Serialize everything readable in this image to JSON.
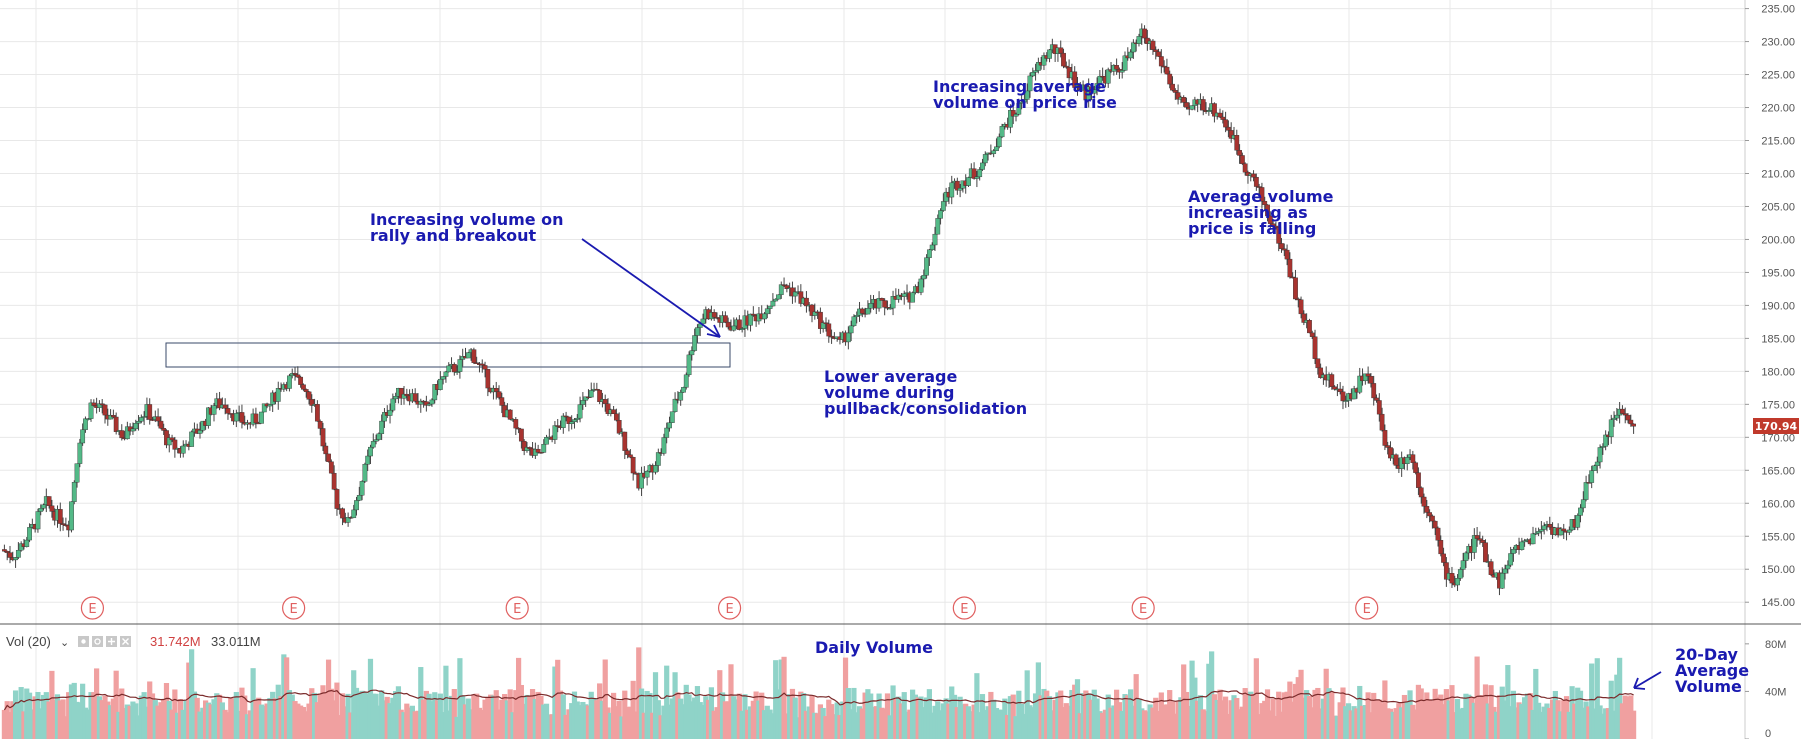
{
  "colors": {
    "up_candle": "#53b987",
    "down_candle": "#a8332f",
    "vol_up": "#8fd3c8",
    "vol_down": "#f0a0a0",
    "avg_line": "#7a2a2a",
    "annotation": "#1a1ab0",
    "earnings_marker": "#e06060",
    "price_badge": "#c0392b",
    "grid": "#e8e8e8"
  },
  "legend": {
    "vol_label": "Vol (20)",
    "vol_value": "31.742M",
    "avg_value": "33.011M",
    "icons": [
      "eye-icon",
      "gear-icon",
      "plus-icon",
      "close-icon"
    ]
  },
  "price_badge": "170.94",
  "earnings_label": "E",
  "annotations": {
    "rally": [
      "Increasing volume on",
      "rally and breakout"
    ],
    "pullback": [
      "Lower average",
      "volume during",
      "pullback/consolidation"
    ],
    "price_rise": [
      "Increasing average",
      "volume on price rise"
    ],
    "falling": [
      "Average volume",
      "increasing as",
      "price is falling"
    ],
    "daily_volume": "Daily Volume",
    "avg20": [
      "20-Day",
      "Average",
      "Volume"
    ]
  },
  "chart_data": [
    {
      "type": "candlestick",
      "title": "",
      "y_ticks": [
        "145.00",
        "150.00",
        "155.00",
        "160.00",
        "165.00",
        "170.00",
        "175.00",
        "180.00",
        "185.00",
        "190.00",
        "195.00",
        "200.00",
        "205.00",
        "210.00",
        "215.00",
        "220.00",
        "225.00",
        "230.00",
        "235.00"
      ],
      "ylim": [
        142,
        236
      ],
      "y_scale": "linear",
      "grid": true,
      "last_price": 170.94,
      "close_series": [
        153,
        152,
        154,
        157,
        160,
        158,
        157,
        170,
        175,
        174,
        172,
        170,
        173,
        174,
        172,
        169,
        168,
        170,
        172,
        175,
        175,
        173,
        172,
        173,
        175,
        178,
        179,
        178,
        175,
        167,
        160,
        157,
        162,
        168,
        172,
        176,
        177,
        176,
        174,
        178,
        180,
        181,
        183,
        180,
        177,
        174,
        171,
        168,
        167,
        170,
        172,
        173,
        175,
        177,
        175,
        172,
        168,
        163,
        165,
        168,
        174,
        178,
        186,
        189,
        188,
        187,
        187,
        188,
        189,
        191,
        193,
        192,
        190,
        188,
        186,
        184,
        187,
        189,
        190,
        190,
        191,
        191,
        193,
        198,
        205,
        208,
        209,
        210,
        212,
        215,
        218,
        220,
        224,
        227,
        229,
        227,
        224,
        222,
        224,
        225,
        226,
        228,
        231,
        229,
        226,
        222,
        219,
        221,
        220,
        219,
        216,
        212,
        209,
        205,
        201,
        197,
        190,
        186,
        180,
        178,
        176,
        177,
        180,
        175,
        168,
        166,
        168,
        161,
        158,
        150,
        148,
        152,
        155,
        151,
        148,
        152,
        154,
        155,
        157,
        156,
        155,
        158,
        164,
        168,
        172,
        174,
        170.94
      ],
      "earnings_markers_at_close_index": [
        8,
        26,
        46,
        65,
        86,
        102,
        122
      ]
    },
    {
      "type": "bar",
      "title": "",
      "series": [
        {
          "name": "Vol (20)",
          "last_value": "31.742M"
        },
        {
          "name": "",
          "last_value": "33.011M",
          "type": "line"
        }
      ],
      "y_ticks": [
        "0",
        "40M",
        "80M"
      ],
      "ylim": [
        0,
        95
      ],
      "units": "millions"
    }
  ]
}
